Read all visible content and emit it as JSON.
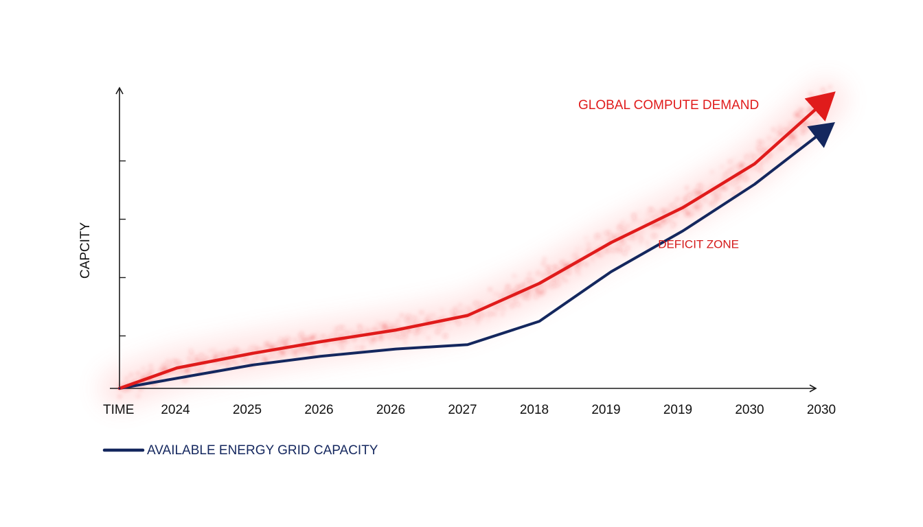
{
  "chart_data": {
    "type": "line",
    "title": "",
    "xlabel": "TIME",
    "ylabel": "CAPCITY",
    "categories": [
      "2024",
      "2025",
      "2026",
      "2026",
      "2027",
      "2018",
      "2019",
      "2019",
      "2030",
      "2030"
    ],
    "ylim": [
      0,
      100
    ],
    "grid": false,
    "legend": "bottom-left",
    "series": [
      {
        "name": "GLOBAL COMPUTE DEMAND",
        "color": "#e01b1b",
        "label_position": "end-above",
        "x": [
          0,
          0.8,
          1.85,
          2.8,
          3.85,
          4.85,
          5.85,
          6.85,
          7.85,
          8.85,
          9.85
        ],
        "values": [
          0,
          7,
          12,
          16,
          20,
          25,
          36,
          50,
          62,
          77,
          99
        ]
      },
      {
        "name": "AVAILABLE ENERGY GRID CAPACITY",
        "color": "#14275e",
        "label_position": "legend",
        "x": [
          0,
          1.85,
          2.8,
          3.85,
          4.85,
          5.85,
          6.85,
          7.85,
          8.85,
          9.85
        ],
        "values": [
          0,
          8,
          11,
          13.5,
          15,
          23,
          40,
          54,
          70,
          89
        ]
      }
    ],
    "annotations": [
      {
        "text": "DEFICIT ZONE",
        "x": 7.6,
        "y": 50
      }
    ],
    "y_ticks": [
      0,
      18,
      38,
      58,
      78
    ]
  }
}
